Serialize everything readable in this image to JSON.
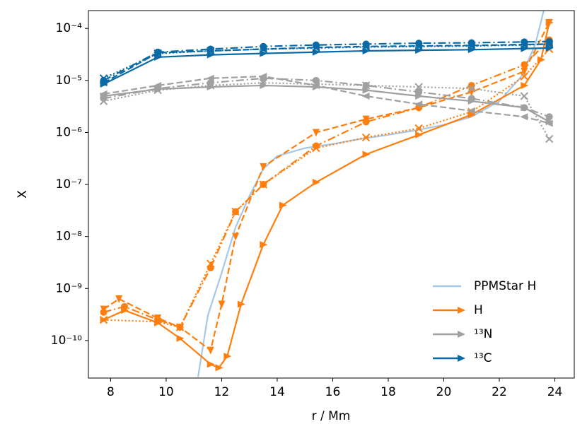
{
  "chart_data": {
    "type": "line",
    "xlabel": "r / Mm",
    "ylabel": "X",
    "log_y": true,
    "legend": "lower right",
    "xlim": [
      7.2,
      24.7
    ],
    "ylim": [
      1.9e-11,
      0.00022
    ],
    "xticks": [
      8,
      10,
      12,
      14,
      16,
      18,
      20,
      22,
      24
    ],
    "yticks": [
      {
        "value": 1e-10,
        "label": "10⁻¹⁰"
      },
      {
        "value": 1e-09,
        "label": "10⁻⁹"
      },
      {
        "value": 1e-08,
        "label": "10⁻⁸"
      },
      {
        "value": 1e-07,
        "label": "10⁻⁷"
      },
      {
        "value": 1e-06,
        "label": "10⁻⁶"
      },
      {
        "value": 1e-05,
        "label": "10⁻⁵"
      },
      {
        "value": 0.0001,
        "label": "10⁻⁴"
      }
    ],
    "series": [
      {
        "name": "PPMStar H",
        "color": "#a6c8e8",
        "linestyle": "solid",
        "marker": "none",
        "x": [
          11.15,
          11.5,
          12,
          12.5,
          13,
          13.5,
          14,
          15,
          16,
          17,
          18,
          19,
          20,
          21,
          22,
          22.8,
          23.3,
          23.6
        ],
        "values": [
          2e-11,
          3e-10,
          2e-09,
          1.5e-08,
          6e-08,
          2e-07,
          3.5e-07,
          5e-07,
          6e-07,
          7.5e-07,
          9e-07,
          1.1e-06,
          1.4e-06,
          2e-06,
          4e-06,
          1.2e-05,
          5e-05,
          0.00022
        ]
      },
      {
        "name": "H",
        "color": "#ff7f0e",
        "linestyle": "solid",
        "marker": "tri-right",
        "x": [
          7.75,
          8.5,
          9.7,
          10.5,
          11.6,
          11.9,
          12.2,
          12.7,
          13.5,
          14.2,
          15.4,
          17.2,
          19.1,
          21,
          22.9,
          23.5,
          23.8
        ],
        "values": [
          2.5e-10,
          3.8e-10,
          2.2e-10,
          1.1e-10,
          3.5e-11,
          3e-11,
          5e-11,
          5e-10,
          7e-09,
          4e-08,
          1.1e-07,
          3.8e-07,
          9e-07,
          2.2e-06,
          8e-06,
          2.5e-05,
          0.00013
        ]
      },
      {
        "color": "#ff7f0e",
        "linestyle": "dashed",
        "marker": "tri-down",
        "x": [
          7.75,
          8.3,
          9.7,
          10.5,
          11.6,
          12,
          12.5,
          13.5,
          15.4,
          17.2,
          19.1,
          21,
          22.9,
          23.8
        ],
        "values": [
          4e-10,
          6.3e-10,
          2.7e-10,
          1.8e-10,
          6.5e-11,
          5e-10,
          1e-08,
          2.2e-07,
          1e-06,
          1.8e-06,
          3e-06,
          6e-06,
          1.5e-05,
          0.00013
        ]
      },
      {
        "color": "#ff7f0e",
        "linestyle": "dashdot",
        "marker": "circle",
        "x": [
          7.75,
          8.5,
          9.7,
          10.5,
          11.6,
          12.5,
          13.5,
          15.4,
          17.2,
          19.1,
          21,
          22.9,
          23.8
        ],
        "values": [
          3.5e-10,
          4.5e-10,
          2.5e-10,
          1.8e-10,
          2.5e-09,
          3e-08,
          1e-07,
          5.5e-07,
          1.6e-06,
          3e-06,
          8e-06,
          2e-05,
          6e-05
        ]
      },
      {
        "color": "#ff7f0e",
        "linestyle": "dotted",
        "marker": "x",
        "x": [
          7.75,
          9.7,
          10.5,
          11.6,
          12.5,
          13.5,
          15.4,
          17.2,
          19.1,
          21,
          22.9,
          23.8
        ],
        "values": [
          2.5e-10,
          2.3e-10,
          1.8e-10,
          3e-09,
          3e-08,
          1e-07,
          5e-07,
          8e-07,
          1.2e-06,
          2.5e-06,
          1.2e-05,
          4e-05
        ]
      },
      {
        "name": "¹³N",
        "color": "#a0a0a0",
        "linestyle": "solid",
        "marker": "tri-right",
        "x": [
          7.75,
          9.7,
          11.6,
          13.5,
          15.4,
          17.2,
          19.1,
          21,
          22.9,
          23.8
        ],
        "values": [
          5e-06,
          6.8e-06,
          7.5e-06,
          8e-06,
          7.5e-06,
          6.5e-06,
          5e-06,
          4e-06,
          3e-06,
          1.6e-06
        ]
      },
      {
        "color": "#a0a0a0",
        "linestyle": "dashed",
        "marker": "tri-left",
        "x": [
          7.75,
          9.7,
          11.6,
          13.5,
          15.4,
          17.2,
          19.1,
          21,
          22.9,
          23.8
        ],
        "values": [
          5.5e-06,
          8e-06,
          1.1e-05,
          1.2e-05,
          8e-06,
          5e-06,
          3.5e-06,
          2.6e-06,
          2e-06,
          1.5e-06
        ]
      },
      {
        "color": "#a0a0a0",
        "linestyle": "dashdot",
        "marker": "circle",
        "x": [
          7.75,
          9.7,
          11.6,
          13.5,
          15.4,
          17.2,
          19.1,
          21,
          22.9,
          23.8
        ],
        "values": [
          4.5e-06,
          7e-06,
          9e-06,
          1.1e-05,
          1e-05,
          8e-06,
          6e-06,
          4.5e-06,
          3e-06,
          2e-06
        ]
      },
      {
        "color": "#a0a0a0",
        "linestyle": "dotted",
        "marker": "x",
        "x": [
          7.75,
          9.7,
          11.6,
          13.5,
          15.4,
          17.2,
          19.1,
          21,
          22.9,
          23.8
        ],
        "values": [
          4e-06,
          6.5e-06,
          8e-06,
          9e-06,
          8.5e-06,
          8e-06,
          7.5e-06,
          7e-06,
          5e-06,
          7.5e-07
        ]
      },
      {
        "name": "¹³C",
        "color": "#0a6aa6",
        "linestyle": "solid",
        "marker": "tri-right",
        "x": [
          7.75,
          9.7,
          11.6,
          13.5,
          15.4,
          17.2,
          19.1,
          21,
          22.9,
          23.8
        ],
        "values": [
          8.5e-06,
          2.8e-05,
          3.1e-05,
          3.3e-05,
          3.5e-05,
          3.7e-05,
          3.8e-05,
          3.9e-05,
          4.1e-05,
          4.2e-05
        ]
      },
      {
        "color": "#0a6aa6",
        "linestyle": "dashed",
        "marker": "tri-left",
        "x": [
          7.75,
          9.7,
          11.6,
          13.5,
          15.4,
          17.2,
          19.1,
          21,
          22.9,
          23.8
        ],
        "values": [
          9e-06,
          3.4e-05,
          3.7e-05,
          4e-05,
          4.3e-05,
          4.5e-05,
          4.6e-05,
          4.7e-05,
          4.9e-05,
          5e-05
        ]
      },
      {
        "color": "#0a6aa6",
        "linestyle": "dashdot",
        "marker": "circle",
        "x": [
          7.75,
          9.7,
          11.6,
          13.5,
          15.4,
          17.2,
          19.1,
          21,
          22.9,
          23.8
        ],
        "values": [
          1e-05,
          3.5e-05,
          4e-05,
          4.5e-05,
          4.8e-05,
          5e-05,
          5.2e-05,
          5.3e-05,
          5.5e-05,
          5.6e-05
        ]
      },
      {
        "color": "#0a6aa6",
        "linestyle": "dotted",
        "marker": "x",
        "x": [
          7.75,
          9.7,
          11.6,
          13.5,
          15.4,
          17.2,
          19.1,
          21,
          22.9,
          23.8
        ],
        "values": [
          1.1e-05,
          3.3e-05,
          3.7e-05,
          4e-05,
          4.2e-05,
          4.4e-05,
          4.5e-05,
          4.6e-05,
          4.8e-05,
          5e-05
        ]
      }
    ]
  }
}
